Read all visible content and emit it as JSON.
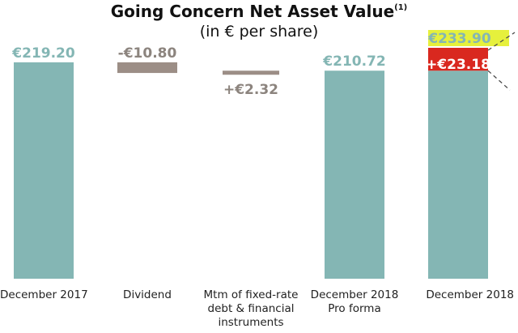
{
  "title": "Going Concern Net Asset Value",
  "title_note": "(1)",
  "subtitle": "(in € per share)",
  "colors": {
    "total": "#84B6B4",
    "negative": "#9C8E86",
    "positive": "#9C8E86",
    "increase": "#D9281F",
    "highlight": "#E6F03C",
    "label_teal": "#84B6B4",
    "label_grey": "#8C847E",
    "connector": "#4A4A4A",
    "axis_text": "#222222"
  },
  "chart_data": {
    "type": "bar",
    "subtype": "waterfall",
    "title": "Going Concern Net Asset Value",
    "subtitle": "(in € per share)",
    "categories": [
      "December 2017",
      "Dividend",
      "Mtm of fixed-rate debt & financial instruments",
      "December 2018 Pro forma",
      "December 2018"
    ],
    "category_lines": [
      [
        "December 2017"
      ],
      [
        "Dividend"
      ],
      [
        "Mtm of fixed-rate",
        "debt & financial",
        "instruments"
      ],
      [
        "December 2018",
        "Pro forma"
      ],
      [
        "December 2018"
      ]
    ],
    "ylim": [
      0,
      233.9
    ],
    "bars": [
      {
        "kind": "total",
        "value": 219.2,
        "label": "€219.20"
      },
      {
        "kind": "negative",
        "value": -10.8,
        "label": "-€10.80"
      },
      {
        "kind": "positive",
        "value": 2.32,
        "label": "+€2.32"
      },
      {
        "kind": "total",
        "value": 210.72,
        "label": "€210.72"
      },
      {
        "kind": "stacked",
        "base": 210.72,
        "value": 23.18,
        "total": 233.9,
        "label": "+€23.18",
        "total_label": "€233.90"
      }
    ]
  }
}
